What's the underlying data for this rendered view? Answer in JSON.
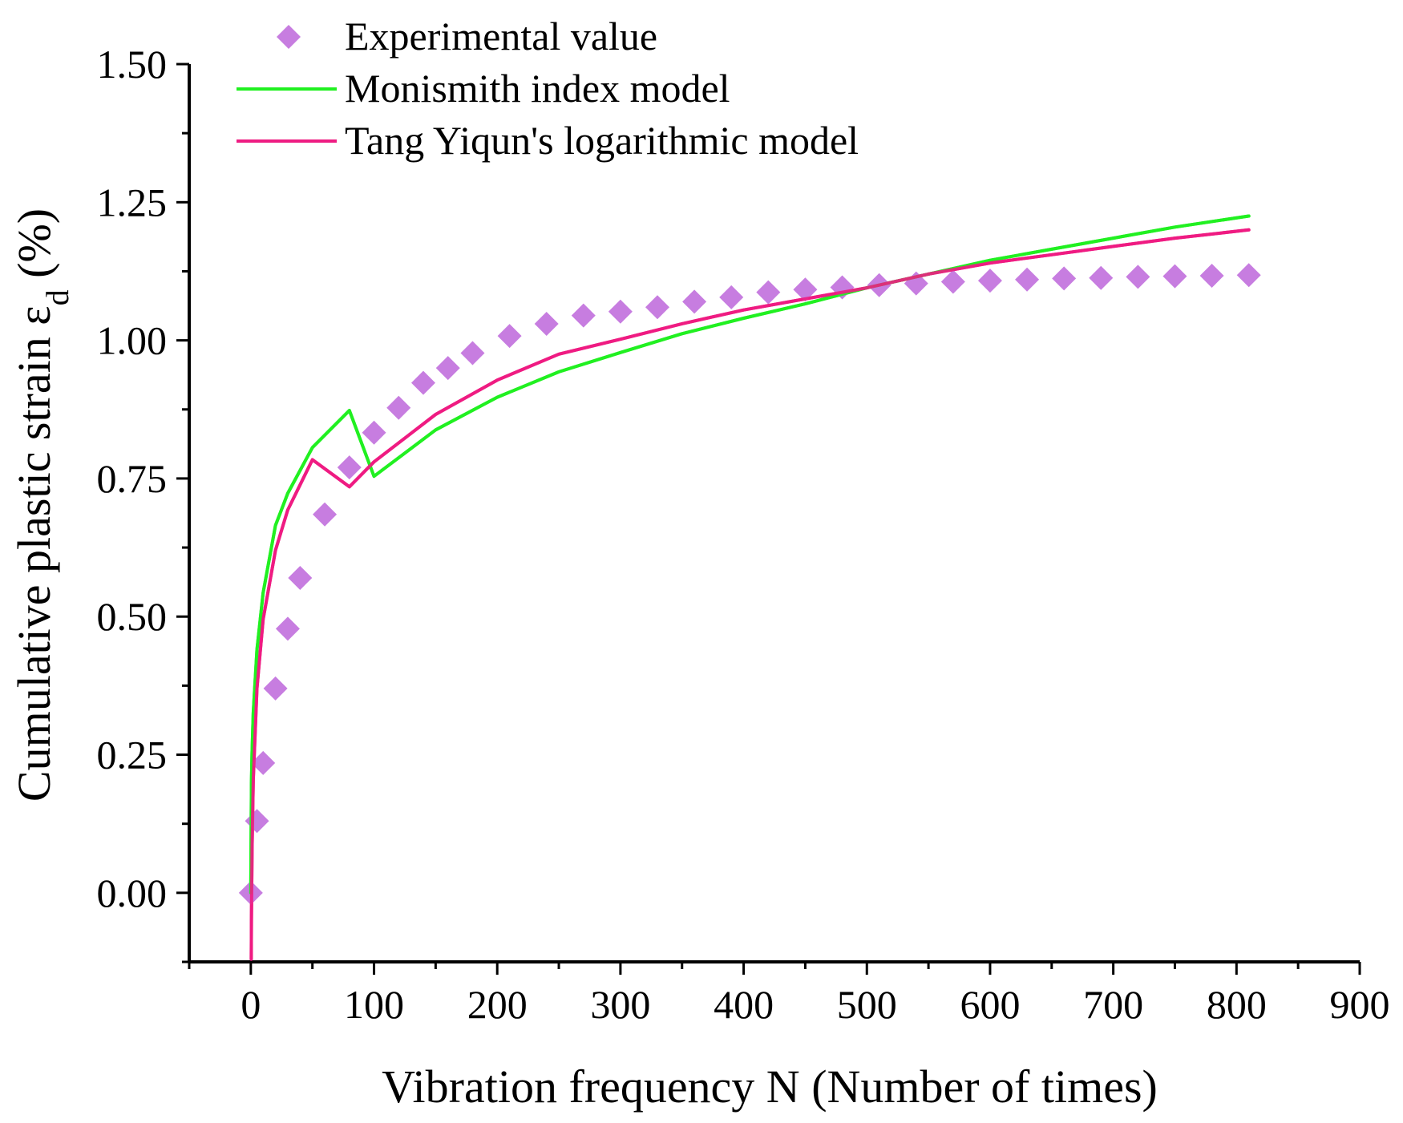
{
  "chart_data": {
    "type": "scatter",
    "xlabel": "Vibration frequency N (Number of times)",
    "ylabel": {
      "main": "Cumulative plastic strain ε",
      "subscript": "d",
      "suffix": " (%)"
    },
    "xlim": [
      -50,
      900
    ],
    "ylim": [
      -0.125,
      1.5
    ],
    "x_ticks": [
      0,
      100,
      200,
      300,
      400,
      500,
      600,
      700,
      800,
      900
    ],
    "y_ticks": [
      0.0,
      0.25,
      0.5,
      0.75,
      1.0,
      1.25,
      1.5
    ],
    "x_tick_labels": [
      "0",
      "100",
      "200",
      "300",
      "400",
      "500",
      "600",
      "700",
      "800",
      "900"
    ],
    "y_tick_labels": [
      "0.00",
      "0.25",
      "0.50",
      "0.75",
      "1.00",
      "1.25",
      "1.50"
    ],
    "grid": false,
    "legend_position": "top-left",
    "series": [
      {
        "name": "Experimental value",
        "kind": "scatter",
        "marker": "diamond",
        "color": "#c77de0",
        "x": [
          0,
          5,
          10,
          20,
          30,
          40,
          60,
          80,
          100,
          120,
          140,
          160,
          180,
          210,
          240,
          270,
          300,
          330,
          360,
          390,
          420,
          450,
          480,
          510,
          540,
          570,
          600,
          630,
          660,
          690,
          720,
          750,
          780,
          810
        ],
        "y": [
          0.0,
          0.13,
          0.235,
          0.37,
          0.478,
          0.57,
          0.685,
          0.77,
          0.833,
          0.878,
          0.923,
          0.95,
          0.977,
          1.008,
          1.03,
          1.045,
          1.052,
          1.06,
          1.07,
          1.078,
          1.087,
          1.092,
          1.096,
          1.1,
          1.103,
          1.106,
          1.108,
          1.11,
          1.112,
          1.113,
          1.115,
          1.116,
          1.117,
          1.118
        ]
      },
      {
        "name": "Monismith index model",
        "kind": "line",
        "color": "#21f021",
        "x": [
          0,
          0.5,
          1,
          2,
          5,
          10,
          20,
          30,
          50,
          80,
          100,
          150,
          200,
          250,
          300,
          350,
          400,
          450,
          500,
          550,
          600,
          650,
          700,
          750,
          810
        ],
        "y": [
          0.0,
          0.198,
          0.254,
          0.326,
          0.44,
          0.543,
          0.665,
          0.723,
          0.806,
          0.873,
          0.754,
          0.838,
          0.897,
          0.943,
          0.978,
          1.012,
          1.04,
          1.066,
          1.095,
          1.12,
          1.145,
          1.165,
          1.185,
          1.205,
          1.225
        ]
      },
      {
        "name": "Tang Yiqun's logarithmic model",
        "kind": "line",
        "color": "#ee1c82",
        "x": [
          0.35,
          0.5,
          1,
          2,
          5,
          10,
          20,
          30,
          50,
          80,
          100,
          150,
          200,
          250,
          300,
          350,
          400,
          450,
          500,
          550,
          600,
          650,
          700,
          750,
          810
        ],
        "y": [
          -0.12,
          -0.05,
          0.08,
          0.205,
          0.37,
          0.495,
          0.62,
          0.693,
          0.784,
          0.735,
          0.78,
          0.866,
          0.928,
          0.975,
          1.002,
          1.03,
          1.055,
          1.075,
          1.095,
          1.12,
          1.14,
          1.155,
          1.17,
          1.185,
          1.2
        ]
      }
    ]
  }
}
